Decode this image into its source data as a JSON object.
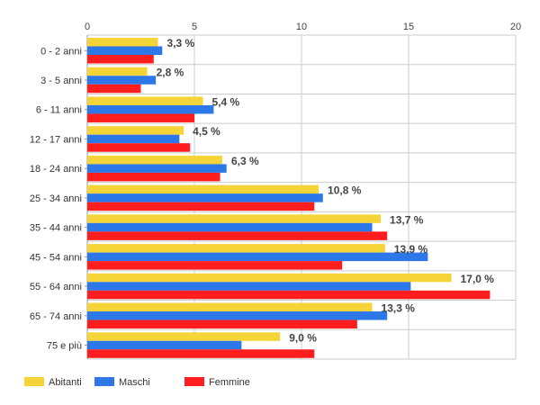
{
  "chart_data": {
    "type": "bar",
    "orientation": "horizontal",
    "title": "",
    "xlabel": "",
    "ylabel": "",
    "xlim": [
      0,
      20
    ],
    "x_ticks": [
      "0",
      "5",
      "10",
      "15",
      "20"
    ],
    "grid": true,
    "legend_position": "bottom-left",
    "categories": [
      "0 - 2 anni",
      "3 - 5 anni",
      "6 - 11 anni",
      "12 - 17 anni",
      "18 - 24 anni",
      "25 - 34 anni",
      "35 - 44 anni",
      "45 - 54 anni",
      "55 - 64 anni",
      "65 - 74 anni",
      "75 e più"
    ],
    "series": [
      {
        "name": "Abitanti",
        "color": "#f5d438",
        "values": [
          3.3,
          2.8,
          5.4,
          4.5,
          6.3,
          10.8,
          13.7,
          13.9,
          17.0,
          13.3,
          9.0
        ]
      },
      {
        "name": "Maschi",
        "color": "#2c78e9",
        "values": [
          3.5,
          3.2,
          5.9,
          4.3,
          6.5,
          11.0,
          13.3,
          15.9,
          15.1,
          14.0,
          7.2
        ]
      },
      {
        "name": "Femmine",
        "color": "#ff1d1d",
        "values": [
          3.1,
          2.5,
          5.0,
          4.8,
          6.2,
          10.6,
          14.0,
          11.9,
          18.8,
          12.6,
          10.6
        ]
      }
    ],
    "data_labels": [
      "3,3 %",
      "2,8 %",
      "5,4 %",
      "4,5 %",
      "6,3 %",
      "10,8 %",
      "13,7 %",
      "13,9 %",
      "17,0 %",
      "13,3 %",
      "9,0 %"
    ]
  }
}
